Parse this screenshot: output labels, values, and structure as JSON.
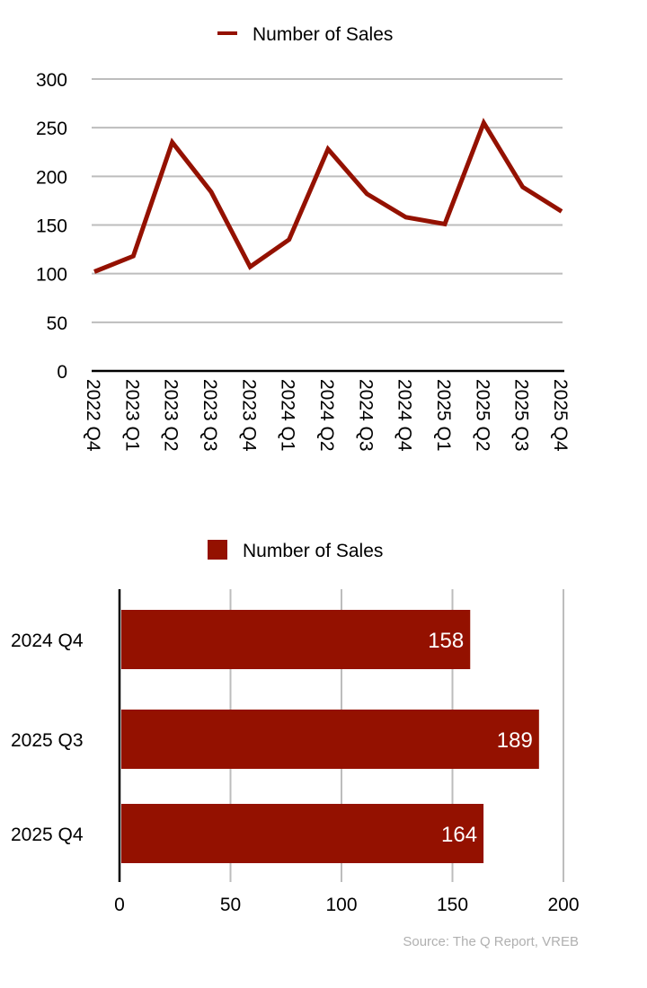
{
  "colors": {
    "series": "#941100",
    "grid": "#bdbdbd",
    "axis": "#000000",
    "source": "#b0b0b0"
  },
  "chart_data": [
    {
      "type": "line",
      "legend": "Number of Sales",
      "legend_position": "top-center",
      "categories": [
        "2022 Q4",
        "2023 Q1",
        "2023 Q2",
        "2023 Q3",
        "2023 Q4",
        "2024 Q1",
        "2024 Q2",
        "2024 Q3",
        "2024 Q4",
        "2025 Q1",
        "2025 Q2",
        "2025 Q3",
        "2025 Q4"
      ],
      "values": [
        102,
        118,
        235,
        184,
        107,
        135,
        228,
        182,
        158,
        151,
        255,
        189,
        164
      ],
      "ylim": [
        0,
        300
      ],
      "yticks": [
        0,
        50,
        100,
        150,
        200,
        250,
        300
      ],
      "grid": true
    },
    {
      "type": "bar",
      "orientation": "horizontal",
      "legend": "Number of Sales",
      "legend_position": "top-center",
      "categories": [
        "2024 Q4",
        "2025 Q3",
        "2025 Q4"
      ],
      "values": [
        158,
        189,
        164
      ],
      "xlim": [
        0,
        200
      ],
      "xticks": [
        0,
        50,
        100,
        150,
        200
      ],
      "grid": true
    }
  ],
  "source": "Source: The Q Report, VREB"
}
